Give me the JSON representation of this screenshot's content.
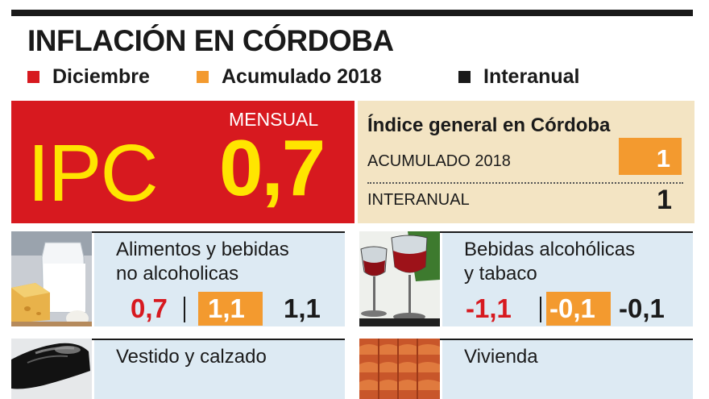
{
  "title": "INFLACIÓN EN CÓRDOBA",
  "legend": [
    {
      "label": "Diciembre",
      "color": "#d7191f"
    },
    {
      "label": "Acumulado 2018",
      "color": "#f39a2f"
    },
    {
      "label": "Interanual",
      "color": "#1a1a1a"
    }
  ],
  "ipc": {
    "word": "IPC",
    "mensual_label": "MENSUAL",
    "value": "0,7"
  },
  "indice": {
    "title": "Índice general en Córdoba",
    "acumulado_label": "ACUMULADO 2018",
    "acumulado_value": "1",
    "interanual_label": "INTERANUAL",
    "interanual_value": "1"
  },
  "chart_data": {
    "type": "table",
    "title": "INFLACIÓN EN CÓRDOBA",
    "series_names": [
      "Diciembre",
      "Acumulado 2018",
      "Interanual"
    ],
    "ipc_mensual": 0.7,
    "indice_general": {
      "acumulado_2018": 1,
      "interanual": 1
    },
    "categories": [
      {
        "label_lines": [
          "Alimentos y bebidas",
          "no alcoholicas"
        ],
        "diciembre": "0,7",
        "acumulado": "1,1",
        "interanual": "1,1",
        "photo": "milk-cheese-icon"
      },
      {
        "label_lines": [
          "Bebidas alcohólicas",
          "y tabaco"
        ],
        "diciembre": "-1,1",
        "acumulado": "-0,1",
        "interanual": "-0,1",
        "photo": "wine-glasses-icon"
      },
      {
        "label_lines": [
          "Vestido y calzado"
        ],
        "photo": "shoe-icon"
      },
      {
        "label_lines": [
          "Vivienda"
        ],
        "photo": "roof-tiles-icon"
      }
    ]
  }
}
